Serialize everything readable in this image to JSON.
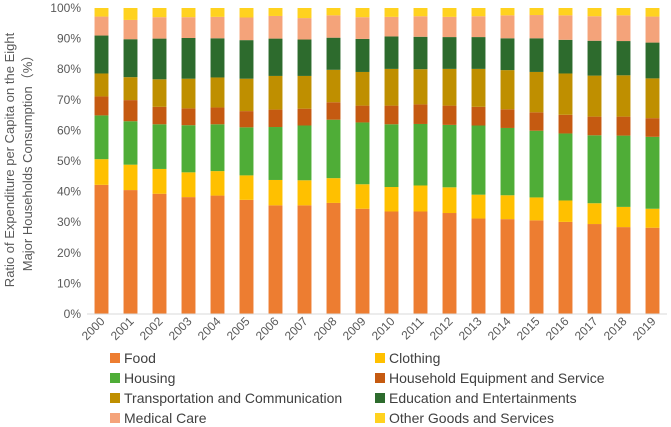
{
  "chart_data": {
    "type": "bar",
    "stacked": true,
    "title": "",
    "xlabel": "",
    "ylabel_lines": [
      "Ratio of Expenditure per Capita on the Eight",
      "Major Households Consumption（%）"
    ],
    "ylim": [
      0,
      100
    ],
    "y_ticks": [
      "0%",
      "10%",
      "20%",
      "30%",
      "40%",
      "50%",
      "60%",
      "70%",
      "80%",
      "90%",
      "100%"
    ],
    "categories": [
      "2000",
      "2001",
      "2002",
      "2003",
      "2004",
      "2005",
      "2006",
      "2007",
      "2008",
      "2009",
      "2010",
      "2011",
      "2012",
      "2013",
      "2014",
      "2015",
      "2016",
      "2017",
      "2018",
      "2019"
    ],
    "series": [
      {
        "name": "Food",
        "color": "#ed7d31",
        "values": [
          42.2,
          40.5,
          39.3,
          38.2,
          38.7,
          37.3,
          35.5,
          35.5,
          36.3,
          34.4,
          33.5,
          33.5,
          33.0,
          31.2,
          31.0,
          30.6,
          30.1,
          29.4,
          28.4,
          28.2
        ]
      },
      {
        "name": "Clothing",
        "color": "#ffc000",
        "values": [
          8.4,
          8.3,
          8.1,
          8.1,
          8.0,
          8.0,
          8.3,
          8.2,
          8.1,
          8.0,
          8.0,
          8.5,
          8.4,
          7.8,
          7.8,
          7.5,
          7.0,
          6.8,
          6.6,
          6.2
        ]
      },
      {
        "name": "Housing",
        "color": "#4fad37",
        "values": [
          14.3,
          14.2,
          14.6,
          15.4,
          15.3,
          15.7,
          17.3,
          17.9,
          19.1,
          20.2,
          20.5,
          20.1,
          20.4,
          22.6,
          22.0,
          21.8,
          21.9,
          22.2,
          23.3,
          23.5
        ]
      },
      {
        "name": "Household Equipment and Service",
        "color": "#c55a11",
        "values": [
          6.2,
          6.9,
          5.7,
          5.5,
          5.5,
          5.3,
          5.7,
          5.5,
          5.7,
          5.5,
          6.1,
          6.4,
          6.3,
          6.1,
          6.1,
          6.0,
          6.1,
          6.1,
          6.2,
          6.1
        ]
      },
      {
        "name": "Transportation and Communication",
        "color": "#bf8f00",
        "values": [
          7.5,
          7.5,
          9.0,
          9.7,
          9.8,
          10.6,
          11.0,
          10.7,
          10.6,
          11.0,
          12.0,
          11.5,
          12.0,
          12.4,
          12.8,
          13.2,
          13.5,
          13.4,
          13.5,
          13.0
        ]
      },
      {
        "name": "Education and Entertainments",
        "color": "#2d6b2d",
        "values": [
          12.4,
          12.4,
          13.3,
          13.3,
          12.8,
          12.6,
          12.2,
          11.9,
          10.5,
          10.8,
          10.6,
          10.6,
          10.4,
          10.4,
          10.4,
          11.0,
          11.0,
          11.4,
          11.2,
          11.7
        ]
      },
      {
        "name": "Medical Care",
        "color": "#f4a37a",
        "values": [
          6.2,
          6.3,
          7.0,
          6.8,
          7.0,
          7.4,
          7.4,
          7.0,
          7.3,
          7.1,
          6.4,
          6.7,
          6.6,
          6.8,
          7.5,
          7.6,
          8.0,
          8.0,
          8.4,
          8.5
        ]
      },
      {
        "name": "Other Goods and Services",
        "color": "#ffd21f",
        "values": [
          2.8,
          3.9,
          3.0,
          3.0,
          2.9,
          3.1,
          2.6,
          3.3,
          2.4,
          3.0,
          2.9,
          2.7,
          2.9,
          2.7,
          2.4,
          2.3,
          2.4,
          2.7,
          2.4,
          2.8
        ]
      }
    ],
    "legend_placement": "bottom, two columns"
  }
}
